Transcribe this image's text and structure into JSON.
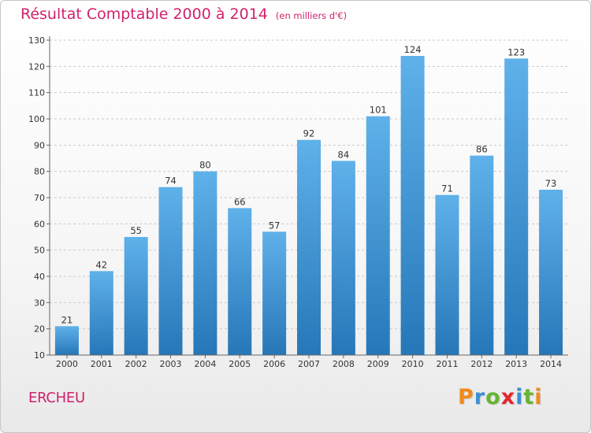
{
  "title": "Résultat Comptable 2000 à 2014",
  "subtitle": "(en milliers d'€)",
  "town": "ERCHEU",
  "logo": {
    "letters": [
      "P",
      "r",
      "o",
      "x",
      "i",
      "t",
      "i"
    ],
    "colors": [
      "#f08a1c",
      "#3b8fd4",
      "#67b531",
      "#e3262f",
      "#3b8fd4",
      "#67b531",
      "#f08a1c"
    ]
  },
  "chart_data": {
    "type": "bar",
    "categories": [
      "2000",
      "2001",
      "2002",
      "2003",
      "2004",
      "2005",
      "2006",
      "2007",
      "2008",
      "2009",
      "2010",
      "2011",
      "2012",
      "2013",
      "2014"
    ],
    "values": [
      21,
      42,
      55,
      74,
      80,
      66,
      57,
      92,
      84,
      101,
      124,
      71,
      86,
      123,
      73
    ],
    "ylim": [
      10,
      130
    ],
    "yticks": [
      10,
      20,
      30,
      40,
      50,
      60,
      70,
      80,
      90,
      100,
      110,
      120,
      130
    ],
    "grid": "horizontal dashed",
    "bar_color": "#3d96d8",
    "title": "Résultat Comptable 2000 à 2014",
    "xlabel": "",
    "ylabel": ""
  }
}
